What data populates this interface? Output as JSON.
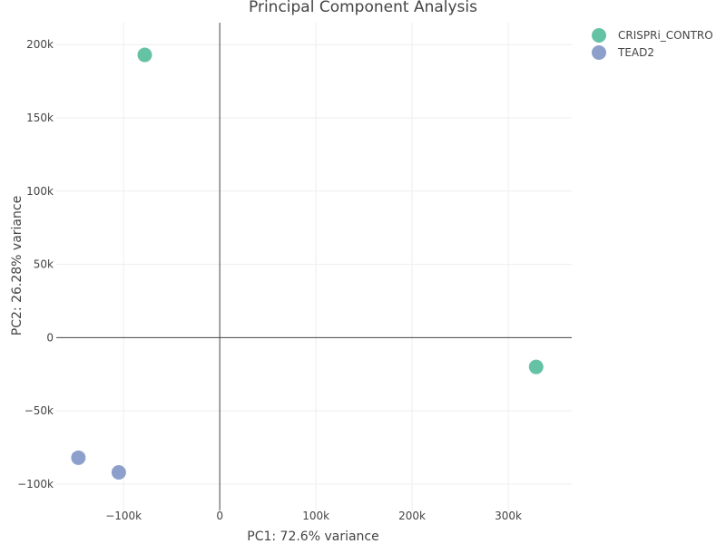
{
  "chart_data": {
    "type": "scatter",
    "title": "Principal Component Analysis",
    "xlabel": "PC1: 72.6% variance",
    "ylabel": "PC2: 26.28% variance",
    "xlim": [
      -170000,
      366000
    ],
    "ylim": [
      -118000,
      215000
    ],
    "x_ticks": [
      -100000,
      0,
      100000,
      200000,
      300000
    ],
    "x_tick_labels": [
      "−100k",
      "0",
      "100k",
      "200k",
      "300k"
    ],
    "y_ticks": [
      -100000,
      -50000,
      0,
      50000,
      100000,
      150000,
      200000
    ],
    "y_tick_labels": [
      "−100k",
      "−50k",
      "0",
      "50k",
      "100k",
      "150k",
      "200k"
    ],
    "grid": true,
    "zero_lines": true,
    "legend_position": "top-right, outside plot",
    "series": [
      {
        "name": "CRISPRi_CONTRO",
        "color": "#66c2a5",
        "points": [
          {
            "x": -78000,
            "y": 193000
          },
          {
            "x": 329000,
            "y": -20000
          }
        ]
      },
      {
        "name": "TEAD2",
        "color": "#8da0cb",
        "points": [
          {
            "x": -147000,
            "y": -82000
          },
          {
            "x": -105000,
            "y": -92000
          }
        ]
      }
    ]
  }
}
